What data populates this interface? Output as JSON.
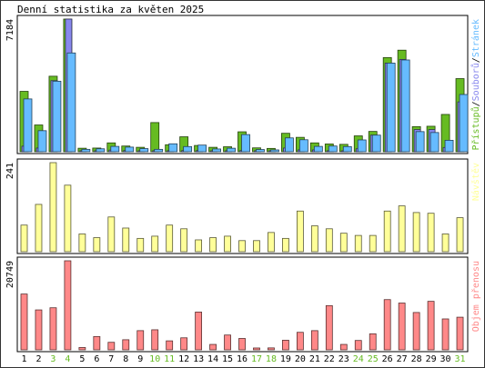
{
  "chart_data": {
    "type": "bar",
    "title": "Denní statistika za květen 2025",
    "categories": [
      "1",
      "2",
      "3",
      "4",
      "5",
      "6",
      "7",
      "8",
      "9",
      "10",
      "11",
      "12",
      "13",
      "14",
      "15",
      "16",
      "17",
      "18",
      "19",
      "20",
      "21",
      "22",
      "23",
      "24",
      "25",
      "26",
      "27",
      "28",
      "29",
      "30",
      "31"
    ],
    "weekend_days": [
      "3",
      "4",
      "10",
      "11",
      "17",
      "18",
      "24",
      "25",
      "31"
    ],
    "panels": [
      {
        "id": "hits",
        "ymax": 7184,
        "ymax_label": "7184",
        "legend": [
          "Přístupů",
          "Souborů",
          "Stránek"
        ],
        "colors": [
          "#66bb22",
          "#8888ee",
          "#66bbff"
        ],
        "series": [
          {
            "name": "Přístupů",
            "values": [
              3270,
              1450,
              4090,
              7184,
              190,
              200,
              480,
              310,
              240,
              1580,
              380,
              810,
              340,
              240,
              270,
              1080,
              210,
              180,
              1000,
              780,
              480,
              420,
              400,
              860,
              1100,
              5100,
              5500,
              1360,
              1380,
              2020,
              3960
            ]
          },
          {
            "name": "Souborů",
            "values": [
              300,
              200,
              3850,
              7184,
              40,
              40,
              90,
              60,
              30,
              20,
              50,
              60,
              60,
              30,
              30,
              60,
              30,
              30,
              200,
              100,
              100,
              50,
              40,
              160,
              900,
              4800,
              5000,
              1200,
              1200,
              230,
              2700
            ]
          },
          {
            "name": "Stránek",
            "values": [
              2860,
              1140,
              3820,
              5350,
              130,
              160,
              290,
              250,
              170,
              130,
              430,
              280,
              360,
              150,
              190,
              930,
              120,
              100,
              750,
              650,
              290,
              310,
              280,
              640,
              900,
              4800,
              4970,
              1090,
              1040,
              620,
              3100
            ]
          }
        ]
      },
      {
        "id": "visits",
        "ymax": 241,
        "ymax_label": "241",
        "legend": [
          "Návštěv"
        ],
        "colors": [
          "#ffff99"
        ],
        "series": [
          {
            "name": "Návštěv",
            "values": [
              72,
              128,
              241,
              180,
              48,
              38,
              94,
              64,
              36,
              42,
              72,
              62,
              32,
              38,
              42,
              30,
              30,
              52,
              36,
              110,
              70,
              62,
              50,
              44,
              44,
              110,
              124,
              106,
              104,
              48,
              92
            ]
          }
        ]
      },
      {
        "id": "traffic",
        "ymax": 20749,
        "ymax_label": "20749",
        "legend": [
          "Objem přenosu"
        ],
        "colors": [
          "#ff8888"
        ],
        "series": [
          {
            "name": "Objem přenosu",
            "values": [
              13000,
              9300,
              9800,
              20749,
              540,
              3100,
              1750,
              2350,
              4470,
              4670,
              2090,
              2800,
              8800,
              1260,
              3450,
              2650,
              430,
              450,
              2240,
              4080,
              4470,
              10300,
              1260,
              2180,
              3730,
              11700,
              10900,
              8700,
              11300,
              7200,
              7600
            ]
          }
        ]
      }
    ]
  }
}
